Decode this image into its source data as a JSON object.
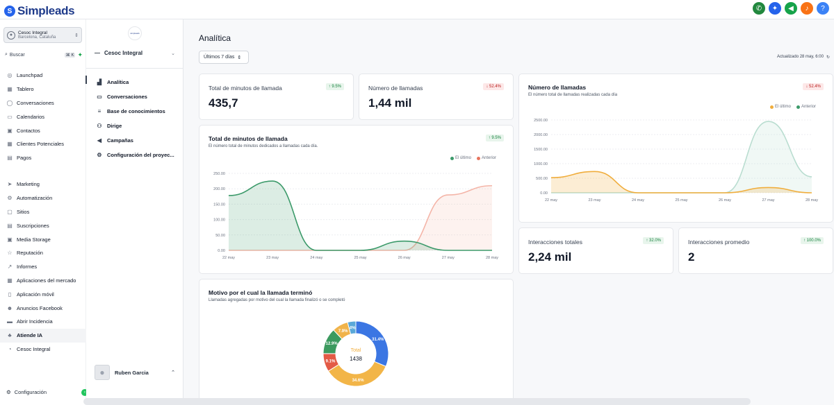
{
  "app": {
    "logo_text": "Simpleads"
  },
  "topbar": {
    "icons": [
      {
        "name": "phone-icon",
        "color": "#22883e",
        "glyph": "✆"
      },
      {
        "name": "magic-icon",
        "color": "#2563eb",
        "glyph": "✦"
      },
      {
        "name": "megaphone-icon",
        "color": "#16a34a",
        "glyph": "◀"
      },
      {
        "name": "bell-icon",
        "color": "#f97316",
        "glyph": "♪"
      },
      {
        "name": "help-icon",
        "color": "#3b82f6",
        "glyph": "?"
      }
    ]
  },
  "account": {
    "name": "Cesoc Integral",
    "location": "Barcelona, Cataluña"
  },
  "search": {
    "label": "Buscar",
    "shortcut": "⌘ K"
  },
  "nav": {
    "group1": [
      {
        "label": "Launchpad",
        "icon": "rocket-icon",
        "glyph": "◎"
      },
      {
        "label": "Tablero",
        "icon": "dashboard-icon",
        "glyph": "▦"
      },
      {
        "label": "Conversaciones",
        "icon": "chat-icon",
        "glyph": "◯"
      },
      {
        "label": "Calendarios",
        "icon": "calendar-icon",
        "glyph": "▭"
      },
      {
        "label": "Contactos",
        "icon": "contacts-icon",
        "glyph": "▣"
      },
      {
        "label": "Clientes Potenciales",
        "icon": "leads-icon",
        "glyph": "▦"
      },
      {
        "label": "Pagos",
        "icon": "payments-icon",
        "glyph": "▤"
      }
    ],
    "group2": [
      {
        "label": "Marketing",
        "icon": "send-icon",
        "glyph": "➤"
      },
      {
        "label": "Automatización",
        "icon": "automation-icon",
        "glyph": "⚙"
      },
      {
        "label": "Sitios",
        "icon": "sites-icon",
        "glyph": "▢"
      },
      {
        "label": "Suscripciones",
        "icon": "subscriptions-icon",
        "glyph": "▤"
      },
      {
        "label": "Media Storage",
        "icon": "media-icon",
        "glyph": "▣"
      },
      {
        "label": "Reputación",
        "icon": "star-icon",
        "glyph": "☆"
      },
      {
        "label": "Informes",
        "icon": "reports-icon",
        "glyph": "↗"
      },
      {
        "label": "Aplicaciones del mercado",
        "icon": "apps-icon",
        "glyph": "▦"
      },
      {
        "label": "Aplicación móvil",
        "icon": "mobile-icon",
        "glyph": "▯"
      },
      {
        "label": "Anuncios Facebook",
        "icon": "facebook-ads-icon",
        "glyph": "☻"
      },
      {
        "label": "Abrir Incidencia",
        "icon": "ticket-icon",
        "glyph": "▬"
      },
      {
        "label": "Atiende IA",
        "icon": "ai-agent-icon",
        "glyph": "♣"
      },
      {
        "label": "Cesoc Integral",
        "icon": "whatsapp-icon",
        "glyph": "◔"
      }
    ],
    "settings": "Configuración"
  },
  "project": {
    "logo_text": "simpleads",
    "name": "Cesoc Integral",
    "items": [
      {
        "label": "Analítica",
        "icon": "analytics-icon",
        "glyph": "▟"
      },
      {
        "label": "Conversaciones",
        "icon": "inbox-icon",
        "glyph": "▭"
      },
      {
        "label": "Base de conocimientos",
        "icon": "database-icon",
        "glyph": "≡"
      },
      {
        "label": "Dirige",
        "icon": "route-icon",
        "glyph": "⚇"
      },
      {
        "label": "Campañas",
        "icon": "campaign-icon",
        "glyph": "◀"
      },
      {
        "label": "Configuración del proyec...",
        "icon": "gear-icon",
        "glyph": "⚙"
      }
    ],
    "user": "Ruben Garcia"
  },
  "main": {
    "title": "Analítica",
    "range": "Últimos 7 días",
    "updated": "Actualizado 28 may, 6:00",
    "stats": {
      "minutes": {
        "label": "Total de minutos de llamada",
        "value": "435,7",
        "change": "↑ 9.5%"
      },
      "calls": {
        "label": "Número de llamadas",
        "value": "1,44 mil",
        "change": "↓ 52.4%"
      },
      "interactions": {
        "label": "Interacciones totales",
        "value": "2,24 mil",
        "change": "↑ 32.0%"
      },
      "avg": {
        "label": "Interacciones promedio",
        "value": "2",
        "change": "↑ 100.0%"
      }
    },
    "pie_title": "Motivo por el cual la llamada terminó",
    "pie_subtitle": "Llamadas agregadas por motivo del cual la llamada finalizó o se completó"
  },
  "chart_data": [
    {
      "type": "area",
      "title": "Total de minutos de llamada",
      "subtitle": "El número total de minutos dedicados a llamadas cada día.",
      "badge": "↑ 9.5%",
      "categories": [
        "22 may",
        "23 may",
        "24 may",
        "25 may",
        "26 may",
        "27 may",
        "28 may"
      ],
      "ylim": [
        0,
        250
      ],
      "yticks": [
        "250.00",
        "200.00",
        "150.00",
        "100.00",
        "50.00",
        "0.00"
      ],
      "legend_position": "top-right",
      "series": [
        {
          "name": "El último",
          "color": "#3c9a6a",
          "values": [
            178,
            225,
            0,
            0,
            30,
            0,
            0
          ]
        },
        {
          "name": "Anterior",
          "color": "#f4b5a8",
          "values": [
            0,
            0,
            0,
            0,
            0,
            180,
            210
          ]
        }
      ]
    },
    {
      "type": "area",
      "title": "Número de llamadas",
      "subtitle": "El número total de llamadas realizadas cada día",
      "badge": "↓ 52.4%",
      "categories": [
        "22 may",
        "23 may",
        "24 may",
        "25 may",
        "26 may",
        "27 may",
        "28 may"
      ],
      "ylim": [
        0,
        2500
      ],
      "yticks": [
        "2500.00",
        "2000.00",
        "1500.00",
        "1000.00",
        "500.00",
        "0.00"
      ],
      "legend_position": "top-right",
      "series": [
        {
          "name": "El último",
          "color": "#f0ad3c",
          "values": [
            520,
            730,
            0,
            0,
            0,
            180,
            0
          ]
        },
        {
          "name": "Anterior",
          "color": "#b9ddd0",
          "values": [
            0,
            0,
            0,
            0,
            0,
            2450,
            550
          ]
        }
      ]
    },
    {
      "type": "pie",
      "title": "Motivo por el cual la llamada terminó",
      "center_label": "Total",
      "center_value": "1438",
      "slices": [
        {
          "label": "31.4%",
          "value": 31.4,
          "color": "#3b76e3"
        },
        {
          "label": "34.6%",
          "value": 34.6,
          "color": "#f2b548"
        },
        {
          "label": "9.1%",
          "value": 9.1,
          "color": "#e35a45"
        },
        {
          "label": "12.9%",
          "value": 12.9,
          "color": "#3c9a5f"
        },
        {
          "label": "7.9%",
          "value": 7.9,
          "color": "#f0b34a"
        },
        {
          "label": "4%",
          "value": 4.1,
          "color": "#5aa8d8"
        }
      ]
    }
  ]
}
